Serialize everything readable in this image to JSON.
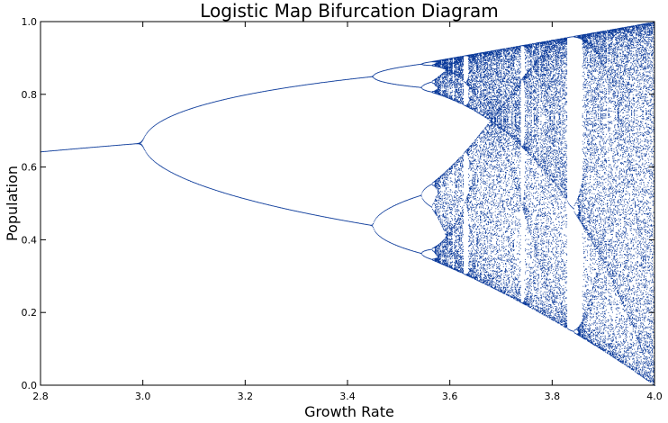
{
  "chart_data": {
    "type": "scatter",
    "title": "Logistic Map Bifurcation Diagram",
    "xlabel": "Growth Rate",
    "ylabel": "Population",
    "xlim": [
      2.8,
      4.0
    ],
    "ylim": [
      0.0,
      1.0
    ],
    "x_ticks": [
      "2.8",
      "3.0",
      "3.2",
      "3.4",
      "3.6",
      "3.8",
      "4.0"
    ],
    "y_ticks": [
      "0.0",
      "0.2",
      "0.4",
      "0.6",
      "0.8",
      "1.0"
    ],
    "grid": false,
    "legend": "none",
    "series": [
      {
        "function": "x_next = r * x * (1 - x)",
        "r_start": 2.8,
        "r_end": 4.0,
        "color": "#0b3a9a"
      }
    ]
  }
}
